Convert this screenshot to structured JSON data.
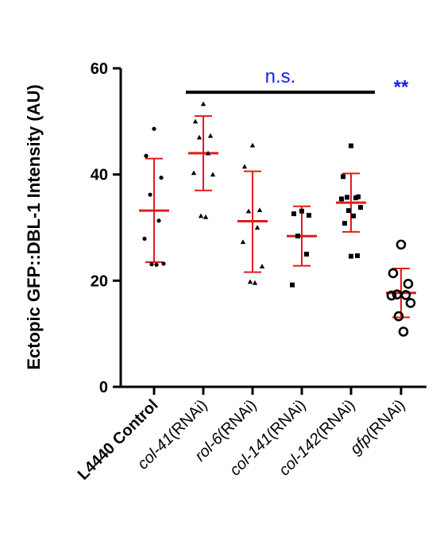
{
  "colors": {
    "mean_sd": "#e31a1c",
    "points": "#000000",
    "significance": "#1a1aff",
    "axis": "#000000"
  },
  "chart_data": {
    "type": "scatter",
    "ylabel": "Ectopic GFP::DBL-1 Intensity (AU)",
    "ylim": [
      0,
      60
    ],
    "yticks": [
      0,
      20,
      40,
      60
    ],
    "categories": [
      {
        "italic_part": "",
        "plain_part": "L4440 Control",
        "bold": true
      },
      {
        "italic_part": "col-41",
        "plain_part": "(RNAi)",
        "bold": false
      },
      {
        "italic_part": "rol-6",
        "plain_part": "(RNAi)",
        "bold": false
      },
      {
        "italic_part": "col-141",
        "plain_part": "(RNAi)",
        "bold": false
      },
      {
        "italic_part": "col-142",
        "plain_part": "(RNAi)",
        "bold": false
      },
      {
        "italic_part": "gfp",
        "plain_part": "(RNAi)",
        "bold": false
      }
    ],
    "groups": [
      {
        "marker": "circle-filled",
        "mean": 33.2,
        "sd_low": 23.5,
        "sd_high": 43.0,
        "points": [
          48.6,
          43.5,
          39.4,
          36.2,
          31.3,
          27.9,
          23.2,
          23.1,
          23.0
        ]
      },
      {
        "marker": "triangle-filled",
        "mean": 44.0,
        "sd_low": 37.0,
        "sd_high": 51.0,
        "points": [
          53.3,
          50.0,
          47.3,
          47.0,
          44.0,
          40.3,
          40.0,
          32.2,
          32.0
        ]
      },
      {
        "marker": "triangle-filled",
        "mean": 31.2,
        "sd_low": 21.6,
        "sd_high": 40.6,
        "points": [
          45.5,
          41.5,
          33.3,
          33.1,
          30.0,
          27.3,
          22.7,
          19.8,
          19.6
        ]
      },
      {
        "marker": "square-filled",
        "mean": 28.4,
        "sd_low": 22.8,
        "sd_high": 34.0,
        "points": [
          33.1,
          32.6,
          32.3,
          28.4,
          25.0,
          19.2
        ]
      },
      {
        "marker": "square-filled",
        "mean": 34.7,
        "sd_low": 29.2,
        "sd_high": 40.2,
        "points": [
          45.4,
          39.6,
          35.8,
          35.7,
          35.6,
          35.4,
          33.8,
          33.2,
          32.2,
          30.8,
          24.7,
          24.6
        ]
      },
      {
        "marker": "circle-open",
        "mean": 17.7,
        "sd_low": 13.1,
        "sd_high": 22.3,
        "points": [
          26.8,
          21.4,
          19.4,
          17.4,
          17.3,
          17.2,
          15.8,
          13.3,
          10.4
        ]
      }
    ],
    "annotations": [
      {
        "text": "n.s.",
        "from_group": 1,
        "to_group": 4,
        "bar": true,
        "y": 55.5
      },
      {
        "text": "**",
        "group": 5,
        "bar": false,
        "y": 58
      }
    ]
  }
}
